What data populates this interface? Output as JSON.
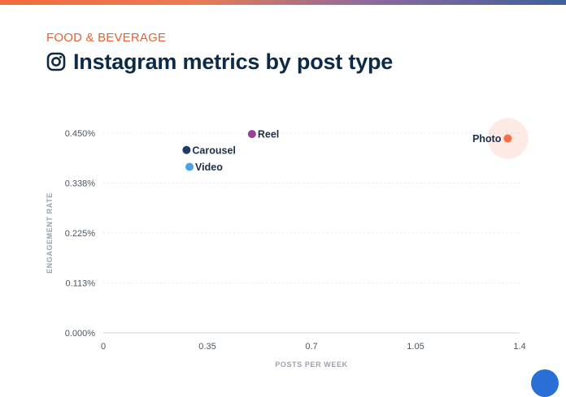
{
  "header": {
    "category": "FOOD & BEVERAGE",
    "title": "Instagram metrics by post type",
    "icon": "instagram-icon"
  },
  "colors": {
    "accent": "#e0643a",
    "title": "#0e2a47"
  },
  "chart_data": {
    "type": "scatter",
    "xlabel": "POSTS PER WEEK",
    "ylabel": "ENGAGEMENT RATE",
    "xlim": [
      0,
      1.4
    ],
    "ylim": [
      0,
      0.45
    ],
    "x_ticks": [
      "0",
      "0.35",
      "0.7",
      "1.05",
      "1.4"
    ],
    "y_ticks": [
      "0.000%",
      "0.113%",
      "0.225%",
      "0.338%",
      "0.450%"
    ],
    "grid": true,
    "series": [
      {
        "name": "Reel",
        "x": 0.5,
        "y": 0.448,
        "color": "#9b3f9b",
        "highlight": false
      },
      {
        "name": "Carousel",
        "x": 0.28,
        "y": 0.412,
        "color": "#1f3b66",
        "highlight": false
      },
      {
        "name": "Video",
        "x": 0.29,
        "y": 0.374,
        "color": "#4aa3e8",
        "highlight": false
      },
      {
        "name": "Photo",
        "x": 1.36,
        "y": 0.438,
        "color": "#f2704a",
        "highlight": true
      }
    ]
  }
}
